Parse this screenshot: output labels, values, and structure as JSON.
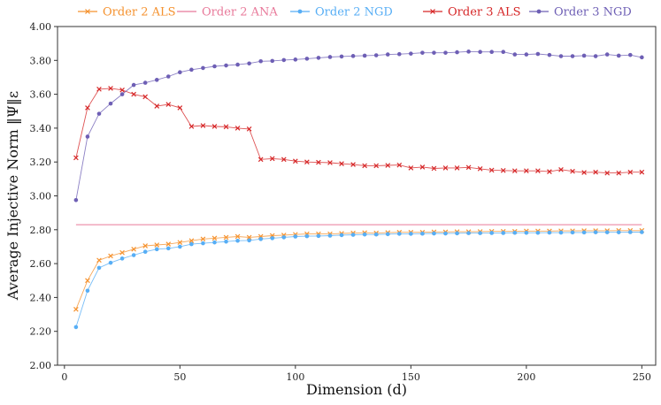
{
  "chart_data": {
    "type": "line",
    "title": "",
    "xlabel": "Dimension (d)",
    "ylabel": "Average Injective Norm ‖Ψ‖ε",
    "xlim": [
      -3,
      256
    ],
    "ylim": [
      2.0,
      4.0
    ],
    "xticks": [
      "0",
      "50",
      "100",
      "150",
      "200",
      "250"
    ],
    "yticks": [
      "2.00",
      "2.20",
      "2.40",
      "2.60",
      "2.80",
      "3.00",
      "3.20",
      "3.40",
      "3.60",
      "3.80",
      "4.00"
    ],
    "grid": false,
    "legend_position": "top",
    "x": [
      5,
      10,
      15,
      20,
      25,
      30,
      35,
      40,
      45,
      50,
      55,
      60,
      65,
      70,
      75,
      80,
      85,
      90,
      95,
      100,
      105,
      110,
      115,
      120,
      125,
      130,
      135,
      140,
      145,
      150,
      155,
      160,
      165,
      170,
      175,
      180,
      185,
      190,
      195,
      200,
      205,
      210,
      215,
      220,
      225,
      230,
      235,
      240,
      245,
      250
    ],
    "series": [
      {
        "name": "Order 2 ALS",
        "color": "#f5922f",
        "marker": "x",
        "values": [
          2.33,
          2.5,
          2.62,
          2.645,
          2.665,
          2.685,
          2.705,
          2.71,
          2.715,
          2.725,
          2.735,
          2.745,
          2.75,
          2.755,
          2.76,
          2.755,
          2.76,
          2.765,
          2.768,
          2.772,
          2.775,
          2.775,
          2.775,
          2.778,
          2.78,
          2.782,
          2.78,
          2.783,
          2.785,
          2.785,
          2.785,
          2.787,
          2.787,
          2.788,
          2.788,
          2.789,
          2.79,
          2.79,
          2.79,
          2.792,
          2.792,
          2.792,
          2.793,
          2.793,
          2.794,
          2.794,
          2.794,
          2.795,
          2.795,
          2.795
        ]
      },
      {
        "name": "Order 2 ANA",
        "color": "#e8799a",
        "marker": "none",
        "values": [
          2.83,
          2.83,
          2.83,
          2.83,
          2.83,
          2.83,
          2.83,
          2.83,
          2.83,
          2.83,
          2.83,
          2.83,
          2.83,
          2.83,
          2.83,
          2.83,
          2.83,
          2.83,
          2.83,
          2.83,
          2.83,
          2.83,
          2.83,
          2.83,
          2.83,
          2.83,
          2.83,
          2.83,
          2.83,
          2.83,
          2.83,
          2.83,
          2.83,
          2.83,
          2.83,
          2.83,
          2.83,
          2.83,
          2.83,
          2.83,
          2.83,
          2.83,
          2.83,
          2.83,
          2.83,
          2.83,
          2.83,
          2.83,
          2.83,
          2.83
        ]
      },
      {
        "name": "Order 2 NGD",
        "color": "#57aef5",
        "marker": "dot",
        "values": [
          2.225,
          2.44,
          2.575,
          2.605,
          2.63,
          2.65,
          2.67,
          2.685,
          2.69,
          2.7,
          2.715,
          2.72,
          2.725,
          2.73,
          2.735,
          2.737,
          2.745,
          2.75,
          2.755,
          2.76,
          2.762,
          2.763,
          2.765,
          2.768,
          2.77,
          2.772,
          2.772,
          2.774,
          2.776,
          2.776,
          2.777,
          2.778,
          2.778,
          2.779,
          2.78,
          2.78,
          2.781,
          2.781,
          2.782,
          2.782,
          2.782,
          2.783,
          2.783,
          2.784,
          2.784,
          2.785,
          2.785,
          2.785,
          2.786,
          2.786
        ]
      },
      {
        "name": "Order 3 ALS",
        "color": "#d62728",
        "marker": "x",
        "values": [
          3.225,
          3.52,
          3.63,
          3.635,
          3.625,
          3.6,
          3.585,
          3.53,
          3.54,
          3.52,
          3.41,
          3.415,
          3.41,
          3.408,
          3.4,
          3.395,
          3.215,
          3.22,
          3.215,
          3.205,
          3.2,
          3.198,
          3.196,
          3.19,
          3.185,
          3.178,
          3.178,
          3.18,
          3.182,
          3.165,
          3.17,
          3.162,
          3.165,
          3.165,
          3.168,
          3.16,
          3.152,
          3.15,
          3.148,
          3.148,
          3.148,
          3.143,
          3.155,
          3.145,
          3.138,
          3.14,
          3.135,
          3.135,
          3.14,
          3.14
        ]
      },
      {
        "name": "Order 3 NGD",
        "color": "#6e5fb5",
        "marker": "dot",
        "values": [
          2.975,
          3.35,
          3.485,
          3.545,
          3.6,
          3.655,
          3.668,
          3.685,
          3.705,
          3.73,
          3.745,
          3.755,
          3.765,
          3.77,
          3.775,
          3.782,
          3.795,
          3.797,
          3.802,
          3.805,
          3.81,
          3.815,
          3.82,
          3.823,
          3.826,
          3.828,
          3.83,
          3.835,
          3.837,
          3.84,
          3.845,
          3.845,
          3.845,
          3.848,
          3.852,
          3.85,
          3.85,
          3.85,
          3.835,
          3.835,
          3.838,
          3.832,
          3.825,
          3.825,
          3.828,
          3.825,
          3.835,
          3.828,
          3.832,
          3.818
        ]
      }
    ]
  }
}
